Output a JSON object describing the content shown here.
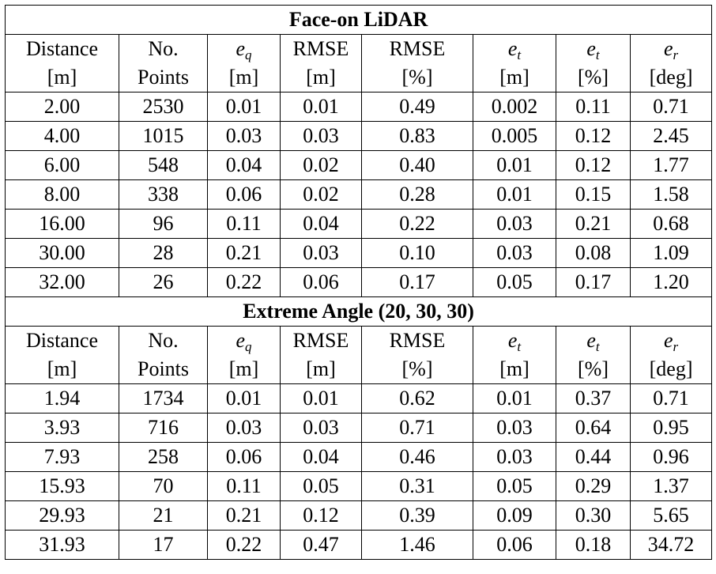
{
  "sections": [
    {
      "title": "Face-on LiDAR",
      "header": [
        {
          "name": "Distance",
          "unit": "[m]"
        },
        {
          "name": "No.",
          "unit": "Points"
        },
        {
          "symbol": "e",
          "sub": "q",
          "unit": "[m]"
        },
        {
          "name": "RMSE",
          "unit": "[m]"
        },
        {
          "name": "RMSE",
          "unit": "[%]"
        },
        {
          "symbol": "e",
          "sub": "t",
          "unit": "[m]"
        },
        {
          "symbol": "e",
          "sub": "t",
          "unit": "[%]"
        },
        {
          "symbol": "e",
          "sub": "r",
          "unit": "[deg]"
        }
      ],
      "rows": [
        [
          "2.00",
          "2530",
          "0.01",
          "0.01",
          "0.49",
          "0.002",
          "0.11",
          "0.71"
        ],
        [
          "4.00",
          "1015",
          "0.03",
          "0.03",
          "0.83",
          "0.005",
          "0.12",
          "2.45"
        ],
        [
          "6.00",
          "548",
          "0.04",
          "0.02",
          "0.40",
          "0.01",
          "0.12",
          "1.77"
        ],
        [
          "8.00",
          "338",
          "0.06",
          "0.02",
          "0.28",
          "0.01",
          "0.15",
          "1.58"
        ],
        [
          "16.00",
          "96",
          "0.11",
          "0.04",
          "0.22",
          "0.03",
          "0.21",
          "0.68"
        ],
        [
          "30.00",
          "28",
          "0.21",
          "0.03",
          "0.10",
          "0.03",
          "0.08",
          "1.09"
        ],
        [
          "32.00",
          "26",
          "0.22",
          "0.06",
          "0.17",
          "0.05",
          "0.17",
          "1.20"
        ]
      ]
    },
    {
      "title": "Extreme Angle (20, 30, 30)",
      "header": [
        {
          "name": "Distance",
          "unit": "[m]"
        },
        {
          "name": "No.",
          "unit": "Points"
        },
        {
          "symbol": "e",
          "sub": "q",
          "unit": "[m]"
        },
        {
          "name": "RMSE",
          "unit": "[m]"
        },
        {
          "name": "RMSE",
          "unit": "[%]"
        },
        {
          "symbol": "e",
          "sub": "t",
          "unit": "[m]"
        },
        {
          "symbol": "e",
          "sub": "t",
          "unit": "[%]"
        },
        {
          "symbol": "e",
          "sub": "r",
          "unit": "[deg]"
        }
      ],
      "rows": [
        [
          "1.94",
          "1734",
          "0.01",
          "0.01",
          "0.62",
          "0.01",
          "0.37",
          "0.71"
        ],
        [
          "3.93",
          "716",
          "0.03",
          "0.03",
          "0.71",
          "0.03",
          "0.64",
          "0.95"
        ],
        [
          "7.93",
          "258",
          "0.06",
          "0.04",
          "0.46",
          "0.03",
          "0.44",
          "0.96"
        ],
        [
          "15.93",
          "70",
          "0.11",
          "0.05",
          "0.31",
          "0.05",
          "0.29",
          "1.37"
        ],
        [
          "29.93",
          "21",
          "0.21",
          "0.12",
          "0.39",
          "0.09",
          "0.30",
          "5.65"
        ],
        [
          "31.93",
          "17",
          "0.22",
          "0.47",
          "1.46",
          "0.06",
          "0.18",
          "34.72"
        ]
      ]
    }
  ]
}
